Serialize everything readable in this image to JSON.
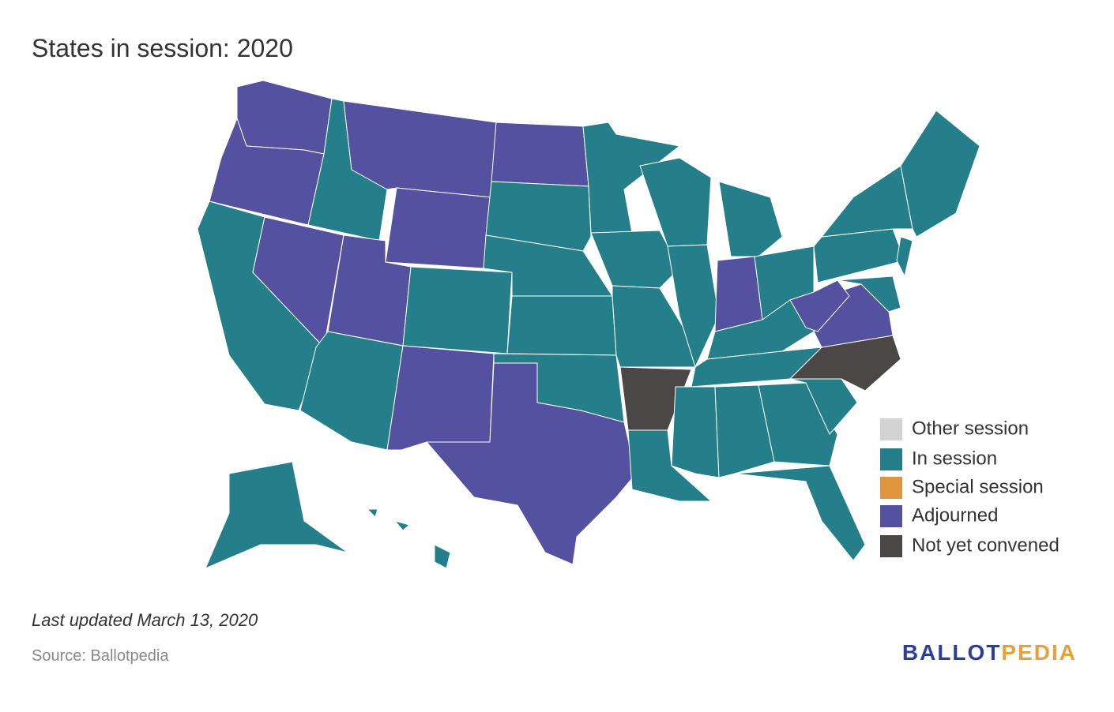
{
  "title": "States in session: 2020",
  "legend": {
    "items": [
      {
        "label": "Other session",
        "color": "#d3d3d3"
      },
      {
        "label": "In session",
        "color": "#257f8a"
      },
      {
        "label": "Special session",
        "color": "#e0963e"
      },
      {
        "label": "Adjourned",
        "color": "#5451a0"
      },
      {
        "label": "Not yet convened",
        "color": "#4a4746"
      }
    ]
  },
  "note": "Last updated March 13, 2020",
  "source": "Source: Ballotpedia",
  "logo": {
    "first": {
      "text": "BALLOT",
      "color": "#2c3e9d"
    },
    "second": {
      "text": "PEDIA",
      "color": "#e8a03a"
    }
  }
}
